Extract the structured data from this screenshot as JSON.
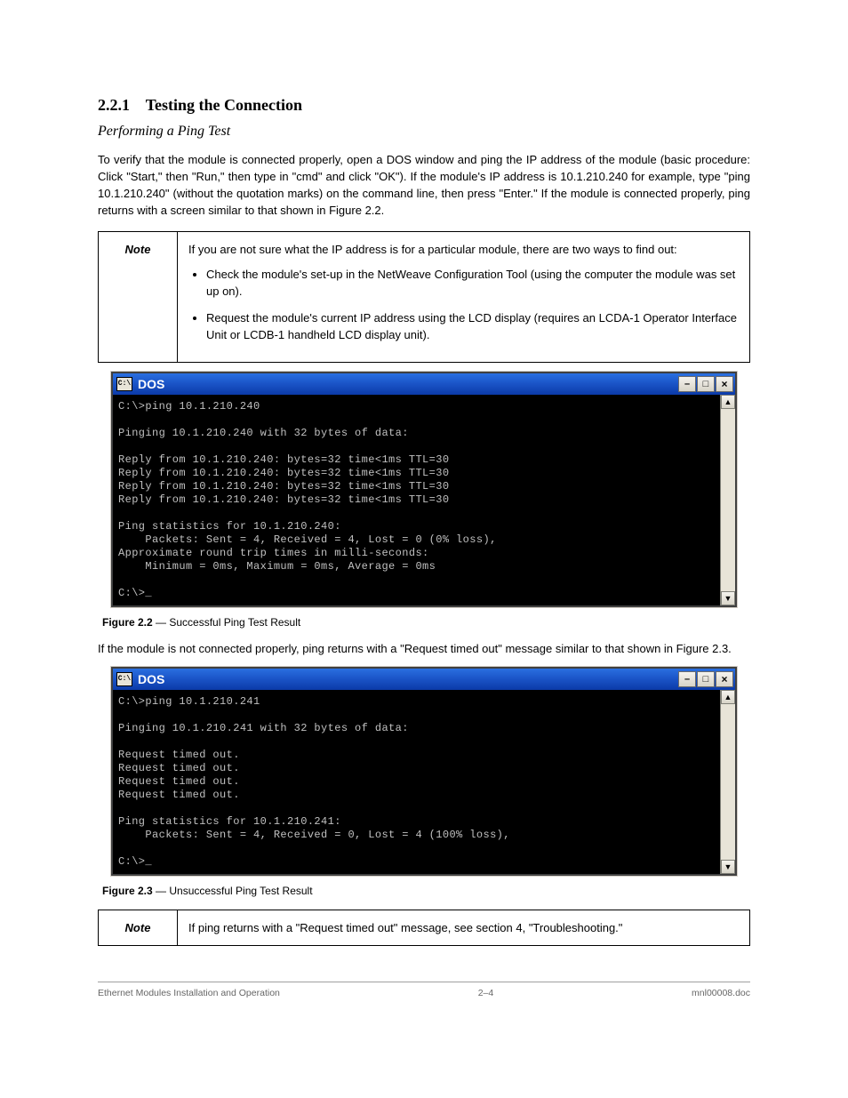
{
  "heading_number": "2.2.1",
  "heading_text": "Testing the Connection",
  "subhead": "Performing a Ping Test",
  "intro": "To verify that the module is connected properly, open a DOS window and ping the IP address of the module (basic procedure: Click \"Start,\" then \"Run,\" then type in \"cmd\" and click \"OK\"). If the module's IP address is 10.1.210.240 for example, type \"ping 10.1.210.240\" (without the quotation marks) on the command line, then press \"Enter.\" If the module is connected properly, ping returns with a screen similar to that shown in Figure 2.2.",
  "note1": {
    "label": "Note",
    "para": "If you are not sure what the IP address is for a particular module, there are two ways to find out:",
    "bullets": [
      "Check the module's set-up in the NetWeave Configuration Tool (using the computer the module was set up on).",
      "Request the module's current IP address using the LCD display (requires an LCDA-1 Operator Interface Unit or LCDB-1 handheld LCD display unit)."
    ]
  },
  "figure1_caption_num": "Figure 2.2",
  "figure1_caption_text": " — Successful Ping Test Result",
  "figure2_intro": "If the module is not connected properly, ping returns with a \"Request timed out\" message similar to that shown in Figure 2.3.",
  "figure2_caption_num": "Figure 2.3",
  "figure2_caption_text": " — Unsuccessful Ping Test Result",
  "dos": {
    "title": "DOS",
    "icon_text": "C:\\",
    "minimize_glyph": "–",
    "maximize_glyph": "□",
    "close_glyph": "×",
    "scroll_up": "▲",
    "scroll_down": "▼"
  },
  "terminal1": "C:\\>ping 10.1.210.240\n\nPinging 10.1.210.240 with 32 bytes of data:\n\nReply from 10.1.210.240: bytes=32 time<1ms TTL=30\nReply from 10.1.210.240: bytes=32 time<1ms TTL=30\nReply from 10.1.210.240: bytes=32 time<1ms TTL=30\nReply from 10.1.210.240: bytes=32 time<1ms TTL=30\n\nPing statistics for 10.1.210.240:\n    Packets: Sent = 4, Received = 4, Lost = 0 (0% loss),\nApproximate round trip times in milli-seconds:\n    Minimum = 0ms, Maximum = 0ms, Average = 0ms\n\nC:\\>_",
  "terminal2": "C:\\>ping 10.1.210.241\n\nPinging 10.1.210.241 with 32 bytes of data:\n\nRequest timed out.\nRequest timed out.\nRequest timed out.\nRequest timed out.\n\nPing statistics for 10.1.210.241:\n    Packets: Sent = 4, Received = 0, Lost = 4 (100% loss),\n\nC:\\>_",
  "note2": {
    "label": "Note",
    "text": "If ping returns with a \"Request timed out\" message, see section 4, \"Troubleshooting.\""
  },
  "footer": {
    "left": "Ethernet Modules Installation and Operation",
    "center": "2–4",
    "right": "mnl00008.doc"
  }
}
